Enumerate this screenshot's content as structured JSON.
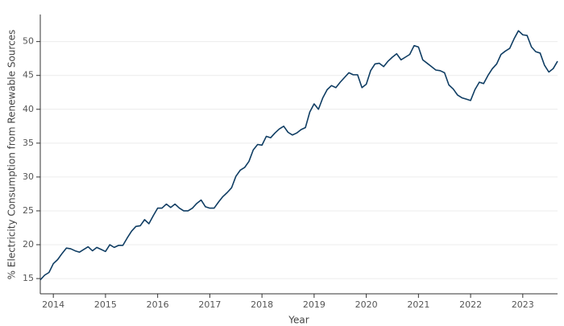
{
  "chart_data": {
    "type": "line",
    "x_label": "Year",
    "y_label": "% Electricity Consumption from Renewable Sources",
    "xlim": [
      2013.75,
      2023.667
    ],
    "xticks": [
      2014,
      2015,
      2016,
      2017,
      2018,
      2019,
      2020,
      2021,
      2022,
      2023
    ],
    "ylim": [
      12.75,
      54
    ],
    "yticks": [
      15,
      20,
      25,
      30,
      35,
      40,
      45,
      50
    ],
    "grid": true,
    "series": [
      {
        "color": "#0f3d63",
        "x": [
          2013.75,
          2013.833,
          2013.917,
          2014.0,
          2014.083,
          2014.167,
          2014.25,
          2014.333,
          2014.417,
          2014.5,
          2014.583,
          2014.667,
          2014.75,
          2014.833,
          2014.917,
          2015.0,
          2015.083,
          2015.167,
          2015.25,
          2015.333,
          2015.417,
          2015.5,
          2015.583,
          2015.667,
          2015.75,
          2015.833,
          2015.917,
          2016.0,
          2016.083,
          2016.167,
          2016.25,
          2016.333,
          2016.417,
          2016.5,
          2016.583,
          2016.667,
          2016.75,
          2016.833,
          2016.917,
          2017.0,
          2017.083,
          2017.167,
          2017.25,
          2017.333,
          2017.417,
          2017.5,
          2017.583,
          2017.667,
          2017.75,
          2017.833,
          2017.917,
          2018.0,
          2018.083,
          2018.167,
          2018.25,
          2018.333,
          2018.417,
          2018.5,
          2018.583,
          2018.667,
          2018.75,
          2018.833,
          2018.917,
          2019.0,
          2019.083,
          2019.167,
          2019.25,
          2019.333,
          2019.417,
          2019.5,
          2019.583,
          2019.667,
          2019.75,
          2019.833,
          2019.917,
          2020.0,
          2020.083,
          2020.167,
          2020.25,
          2020.333,
          2020.417,
          2020.5,
          2020.583,
          2020.667,
          2020.75,
          2020.833,
          2020.917,
          2021.0,
          2021.083,
          2021.167,
          2021.25,
          2021.333,
          2021.417,
          2021.5,
          2021.583,
          2021.667,
          2021.75,
          2021.833,
          2021.917,
          2022.0,
          2022.083,
          2022.167,
          2022.25,
          2022.333,
          2022.417,
          2022.5,
          2022.583,
          2022.667,
          2022.75,
          2022.833,
          2022.917,
          2023.0,
          2023.083,
          2023.167,
          2023.25,
          2023.333,
          2023.417,
          2023.5,
          2023.583,
          2023.667
        ],
        "values": [
          14.8,
          15.5,
          15.9,
          17.2,
          17.8,
          18.7,
          19.5,
          19.4,
          19.1,
          18.9,
          19.3,
          19.7,
          19.1,
          19.6,
          19.3,
          19.0,
          20.0,
          19.6,
          19.9,
          19.9,
          21.0,
          22.0,
          22.7,
          22.8,
          23.7,
          23.1,
          24.3,
          25.4,
          25.4,
          26.0,
          25.5,
          26.0,
          25.4,
          25.0,
          25.0,
          25.4,
          26.1,
          26.6,
          25.6,
          25.4,
          25.4,
          26.3,
          27.1,
          27.7,
          28.4,
          30.1,
          31.0,
          31.4,
          32.3,
          34.0,
          34.8,
          34.7,
          36.0,
          35.8,
          36.5,
          37.1,
          37.5,
          36.6,
          36.2,
          36.5,
          37.0,
          37.3,
          39.6,
          40.8,
          40.0,
          41.7,
          42.9,
          43.5,
          43.2,
          44.0,
          44.7,
          45.4,
          45.1,
          45.1,
          43.2,
          43.7,
          45.7,
          46.7,
          46.8,
          46.3,
          47.1,
          47.7,
          48.2,
          47.3,
          47.7,
          48.1,
          49.4,
          49.2,
          47.3,
          46.8,
          46.3,
          45.8,
          45.7,
          45.4,
          43.6,
          43.0,
          42.1,
          41.7,
          41.5,
          41.3,
          42.9,
          44.0,
          43.8,
          45.0,
          46.0,
          46.7,
          48.1,
          48.6,
          49.0,
          50.4,
          51.6,
          51.0,
          50.9,
          49.2,
          48.5,
          48.3,
          46.5,
          45.5,
          46.0,
          47.1
        ]
      }
    ]
  }
}
